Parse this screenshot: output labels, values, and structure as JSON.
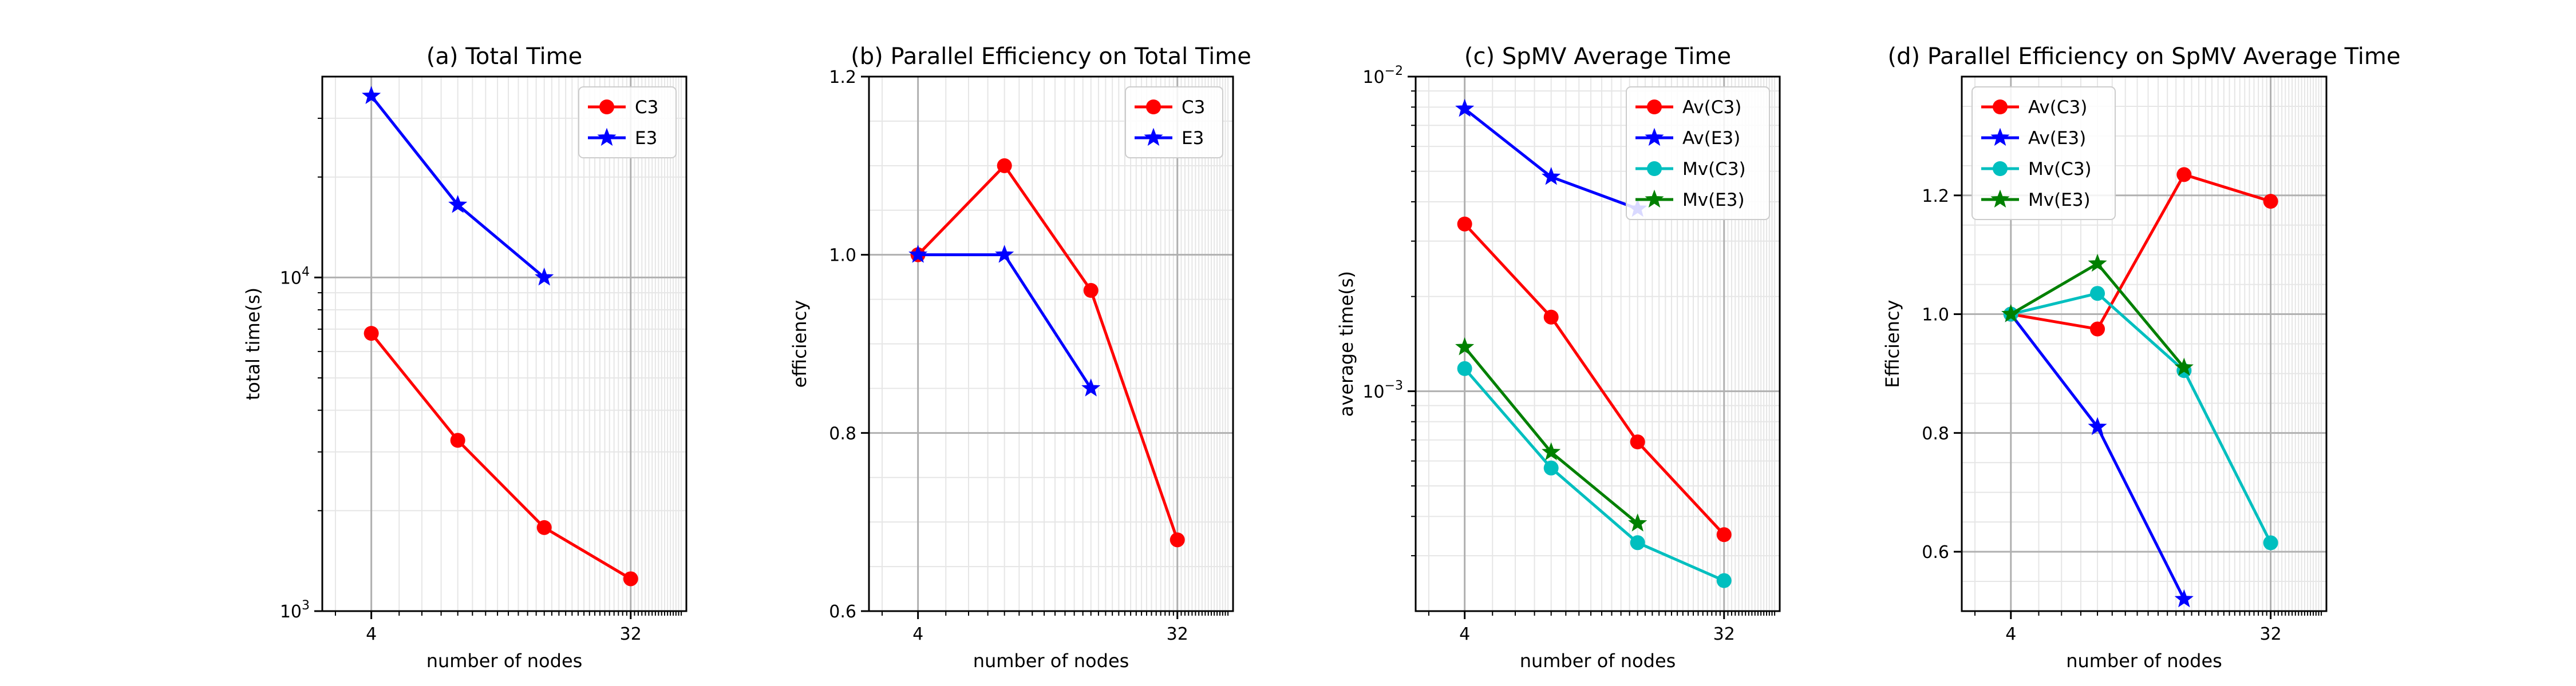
{
  "chart_data": [
    {
      "type": "line",
      "title": "(a) Total Time",
      "xlabel": "number of nodes",
      "ylabel": "total time(s)",
      "xscale": "log2",
      "yscale": "log",
      "xlim": [
        2.7,
        50
      ],
      "ylim": [
        1000,
        40000
      ],
      "xticks": [
        {
          "value": 4,
          "label": "4"
        },
        {
          "value": 32,
          "label": "32"
        }
      ],
      "yticks": [
        {
          "value": 1000,
          "label": "10",
          "sup": "3"
        },
        {
          "value": 10000,
          "label": "10",
          "sup": "4"
        }
      ],
      "grid": true,
      "legend": "top-right",
      "series": [
        {
          "name": "C3",
          "color": "#ff0000",
          "marker": "circle",
          "x": [
            4,
            8,
            16,
            32
          ],
          "y": [
            6800,
            3250,
            1780,
            1250
          ]
        },
        {
          "name": "E3",
          "color": "#0000ff",
          "marker": "star",
          "x": [
            4,
            8,
            16
          ],
          "y": [
            35000,
            16500,
            10000
          ]
        }
      ]
    },
    {
      "type": "line",
      "title": "(b) Parallel Efficiency on Total Time",
      "xlabel": "number of nodes",
      "ylabel": "efficiency",
      "xscale": "log2",
      "yscale": "linear",
      "xlim": [
        2.7,
        50
      ],
      "ylim": [
        0.6,
        1.2
      ],
      "xticks": [
        {
          "value": 4,
          "label": "4"
        },
        {
          "value": 32,
          "label": "32"
        }
      ],
      "yticks": [
        {
          "value": 0.6,
          "label": "0.6"
        },
        {
          "value": 0.8,
          "label": "0.8"
        },
        {
          "value": 1.0,
          "label": "1.0"
        },
        {
          "value": 1.2,
          "label": "1.2"
        }
      ],
      "grid": true,
      "legend": "top-right",
      "series": [
        {
          "name": "C3",
          "color": "#ff0000",
          "marker": "circle",
          "x": [
            4,
            8,
            16,
            32
          ],
          "y": [
            1.0,
            1.1,
            0.96,
            0.68
          ]
        },
        {
          "name": "E3",
          "color": "#0000ff",
          "marker": "star",
          "x": [
            4,
            8,
            16
          ],
          "y": [
            1.0,
            1.0,
            0.85
          ]
        }
      ]
    },
    {
      "type": "line",
      "title": "(c) SpMV Average Time",
      "xlabel": "number of nodes",
      "ylabel": "average time(s)",
      "xscale": "log2",
      "yscale": "log",
      "xlim": [
        2.7,
        50
      ],
      "ylim": [
        0.0002,
        0.01
      ],
      "xticks": [
        {
          "value": 4,
          "label": "4"
        },
        {
          "value": 32,
          "label": "32"
        }
      ],
      "yticks": [
        {
          "value": 0.001,
          "label": "10",
          "sup": "−3"
        },
        {
          "value": 0.01,
          "label": "10",
          "sup": "−2"
        }
      ],
      "grid": true,
      "legend": "top-right",
      "series": [
        {
          "name": "Av(C3)",
          "color": "#ff0000",
          "marker": "circle",
          "x": [
            4,
            8,
            16,
            32
          ],
          "y": [
            0.0034,
            0.00172,
            0.00069,
            0.00035
          ]
        },
        {
          "name": "Av(E3)",
          "color": "#0000ff",
          "marker": "star",
          "x": [
            4,
            8,
            16
          ],
          "y": [
            0.0079,
            0.0048,
            0.0038
          ]
        },
        {
          "name": "Mv(C3)",
          "color": "#00bfbf",
          "marker": "circle",
          "x": [
            4,
            8,
            16,
            32
          ],
          "y": [
            0.00118,
            0.00057,
            0.00033,
            0.00025
          ]
        },
        {
          "name": "Mv(E3)",
          "color": "#008000",
          "marker": "star",
          "x": [
            4,
            8,
            16
          ],
          "y": [
            0.00138,
            0.00064,
            0.00038
          ]
        }
      ]
    },
    {
      "type": "line",
      "title": "(d) Parallel Efficiency on SpMV Average Time",
      "xlabel": "number of nodes",
      "ylabel": "Efficiency",
      "xscale": "log2",
      "yscale": "linear",
      "xlim": [
        2.7,
        50
      ],
      "ylim": [
        0.5,
        1.4
      ],
      "xticks": [
        {
          "value": 4,
          "label": "4"
        },
        {
          "value": 32,
          "label": "32"
        }
      ],
      "yticks": [
        {
          "value": 0.6,
          "label": "0.6"
        },
        {
          "value": 0.8,
          "label": "0.8"
        },
        {
          "value": 1.0,
          "label": "1.0"
        },
        {
          "value": 1.2,
          "label": "1.2"
        }
      ],
      "grid": true,
      "legend": "top-left",
      "series": [
        {
          "name": "Av(C3)",
          "color": "#ff0000",
          "marker": "circle",
          "x": [
            4,
            8,
            16,
            32
          ],
          "y": [
            1.0,
            0.975,
            1.235,
            1.19
          ]
        },
        {
          "name": "Av(E3)",
          "color": "#0000ff",
          "marker": "star",
          "x": [
            4,
            8,
            16
          ],
          "y": [
            1.0,
            0.81,
            0.52
          ]
        },
        {
          "name": "Mv(C3)",
          "color": "#00bfbf",
          "marker": "circle",
          "x": [
            4,
            8,
            16,
            32
          ],
          "y": [
            1.0,
            1.035,
            0.905,
            0.615
          ]
        },
        {
          "name": "Mv(E3)",
          "color": "#008000",
          "marker": "star",
          "x": [
            4,
            8,
            16
          ],
          "y": [
            1.0,
            1.085,
            0.91
          ]
        }
      ]
    }
  ]
}
